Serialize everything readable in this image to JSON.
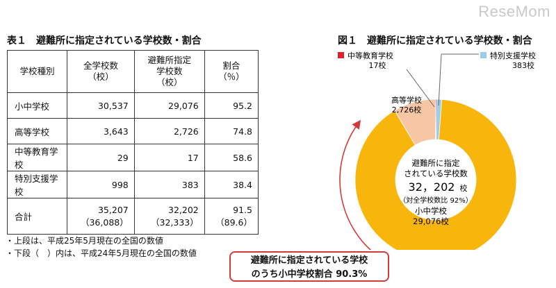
{
  "watermark": "ReseMom",
  "table": {
    "title": "表１　避難所に指定されている学校数・割合",
    "headers": [
      "学校種別",
      "全学校数\n（校）",
      "避難所指定\n学校数\n（校）",
      "割合\n（％）"
    ],
    "rows": [
      {
        "type": "小中学校",
        "all": "30,537",
        "designated": "29,076",
        "ratio": "95.2"
      },
      {
        "type": "高等学校",
        "all": "3,643",
        "designated": "2,726",
        "ratio": "74.8"
      },
      {
        "type": "中等教育学校",
        "all": "29",
        "designated": "17",
        "ratio": "58.6"
      },
      {
        "type": "特別支援学校",
        "all": "998",
        "designated": "383",
        "ratio": "38.4"
      }
    ],
    "total": {
      "type": "合計",
      "all": "35,207",
      "all_prev": "（36,088）",
      "designated": "32,202",
      "designated_prev": "（32,333）",
      "ratio": "91.5",
      "ratio_prev": "（89.6）"
    }
  },
  "notes": [
    "・上段は、平成25年5月現在の全国の数値",
    "・下段（　）内は、平成24年5月現在の全国の数値"
  ],
  "figure": {
    "title": "図１　避難所に指定されている学校数・割合",
    "center_line1": "避難所に指定",
    "center_line2": "されている学校数",
    "center_value": "32，202",
    "center_unit": "校",
    "center_sub": "（対全学校数比 92%）",
    "callout_line1": "避難所に指定されている学校",
    "callout_line2": "のうち小中学校割合 90.3%"
  },
  "chart_data": {
    "type": "pie",
    "categories": [
      "小中学校",
      "高等学校",
      "中等教育学校",
      "特別支援学校"
    ],
    "values": [
      29076,
      2726,
      17,
      383
    ],
    "value_labels": [
      "29,076校",
      "2,726校",
      "17校",
      "383校"
    ],
    "colors": [
      "#f8b60c",
      "#f7c7a5",
      "#e0202a",
      "#9fcde6"
    ]
  }
}
